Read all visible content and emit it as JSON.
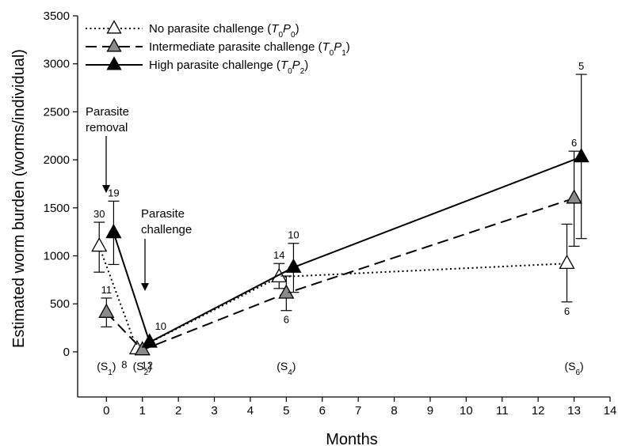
{
  "chart_data": {
    "type": "line",
    "xlabel": "Months",
    "ylabel": "Estimated worm burden (worms/individual)",
    "xlim": [
      -0.8,
      14
    ],
    "ylim": [
      -470,
      3500
    ],
    "x_ticks": [
      "0",
      "1",
      "2",
      "3",
      "4",
      "5",
      "6",
      "7",
      "8",
      "9",
      "10",
      "11",
      "12",
      "13",
      "14"
    ],
    "y_ticks": [
      "0",
      "500",
      "1000",
      "1500",
      "2000",
      "2500",
      "3000",
      "3500"
    ],
    "grid": false,
    "legend_position": "top-left",
    "series": [
      {
        "key": "T0P0",
        "name_prefix": "No parasite challenge (",
        "name_T": "T",
        "name_Tsub": "0",
        "name_P": "P",
        "name_Psub": "0",
        "name_suffix": ")",
        "marker": "triangle-open",
        "line_style": "dotted",
        "color": "#ffffff",
        "points": [
          {
            "x": -0.2,
            "y": 1100,
            "err_low": 830,
            "err_high": 1350,
            "n": "30",
            "n_pos": "above"
          },
          {
            "x": 0.85,
            "y": 30,
            "err_low": 30,
            "err_high": 30,
            "n": "8",
            "n_pos": "below"
          },
          {
            "x": 4.8,
            "y": 780,
            "err_low": 660,
            "err_high": 920,
            "n": "14",
            "n_pos": "above"
          },
          {
            "x": 12.8,
            "y": 920,
            "err_low": 520,
            "err_high": 1330,
            "n": "6",
            "n_pos": "below"
          }
        ]
      },
      {
        "key": "T0P1",
        "name_prefix": "Intermediate parasite challenge (",
        "name_T": "T",
        "name_Tsub": "0",
        "name_P": "P",
        "name_Psub": "1",
        "name_suffix": ")",
        "marker": "triangle-gray",
        "line_style": "dashed",
        "color": "#8a8a8a",
        "points": [
          {
            "x": 0.0,
            "y": 410,
            "err_low": 260,
            "err_high": 560,
            "n": "11",
            "n_pos": "above"
          },
          {
            "x": 1.0,
            "y": 20,
            "err_low": 20,
            "err_high": 20,
            "n": "12",
            "n_pos": "below"
          },
          {
            "x": 5.0,
            "y": 610,
            "err_low": 430,
            "err_high": 790,
            "n": "6",
            "n_pos": "below"
          },
          {
            "x": 13.0,
            "y": 1600,
            "err_low": 1100,
            "err_high": 2090,
            "n": "6",
            "n_pos": "above"
          }
        ]
      },
      {
        "key": "T0P2",
        "name_prefix": "High parasite challenge (",
        "name_T": "T",
        "name_Tsub": "0",
        "name_P": "P",
        "name_Psub": "2",
        "name_suffix": ")",
        "marker": "triangle-filled",
        "line_style": "solid",
        "color": "#000000",
        "points": [
          {
            "x": 0.2,
            "y": 1240,
            "err_low": 910,
            "err_high": 1570,
            "n": "19",
            "n_pos": "above"
          },
          {
            "x": 1.2,
            "y": 100,
            "err_low": 100,
            "err_high": 100,
            "n": "10",
            "n_pos": "above"
          },
          {
            "x": 5.2,
            "y": 880,
            "err_low": 620,
            "err_high": 1130,
            "n": "10",
            "n_pos": "above"
          },
          {
            "x": 13.2,
            "y": 2030,
            "err_low": 1180,
            "err_high": 2890,
            "n": "5",
            "n_pos": "above"
          }
        ]
      }
    ],
    "annotations": {
      "removal_line1": "Parasite",
      "removal_line2": "removal",
      "challenge_line1": "Parasite",
      "challenge_line2": "challenge"
    },
    "sessions": [
      {
        "x": 0,
        "label": "S",
        "sub": "1"
      },
      {
        "x": 1,
        "label": "S",
        "sub": "2"
      },
      {
        "x": 5,
        "label": "S",
        "sub": "4"
      },
      {
        "x": 13,
        "label": "S",
        "sub": "6"
      }
    ]
  }
}
